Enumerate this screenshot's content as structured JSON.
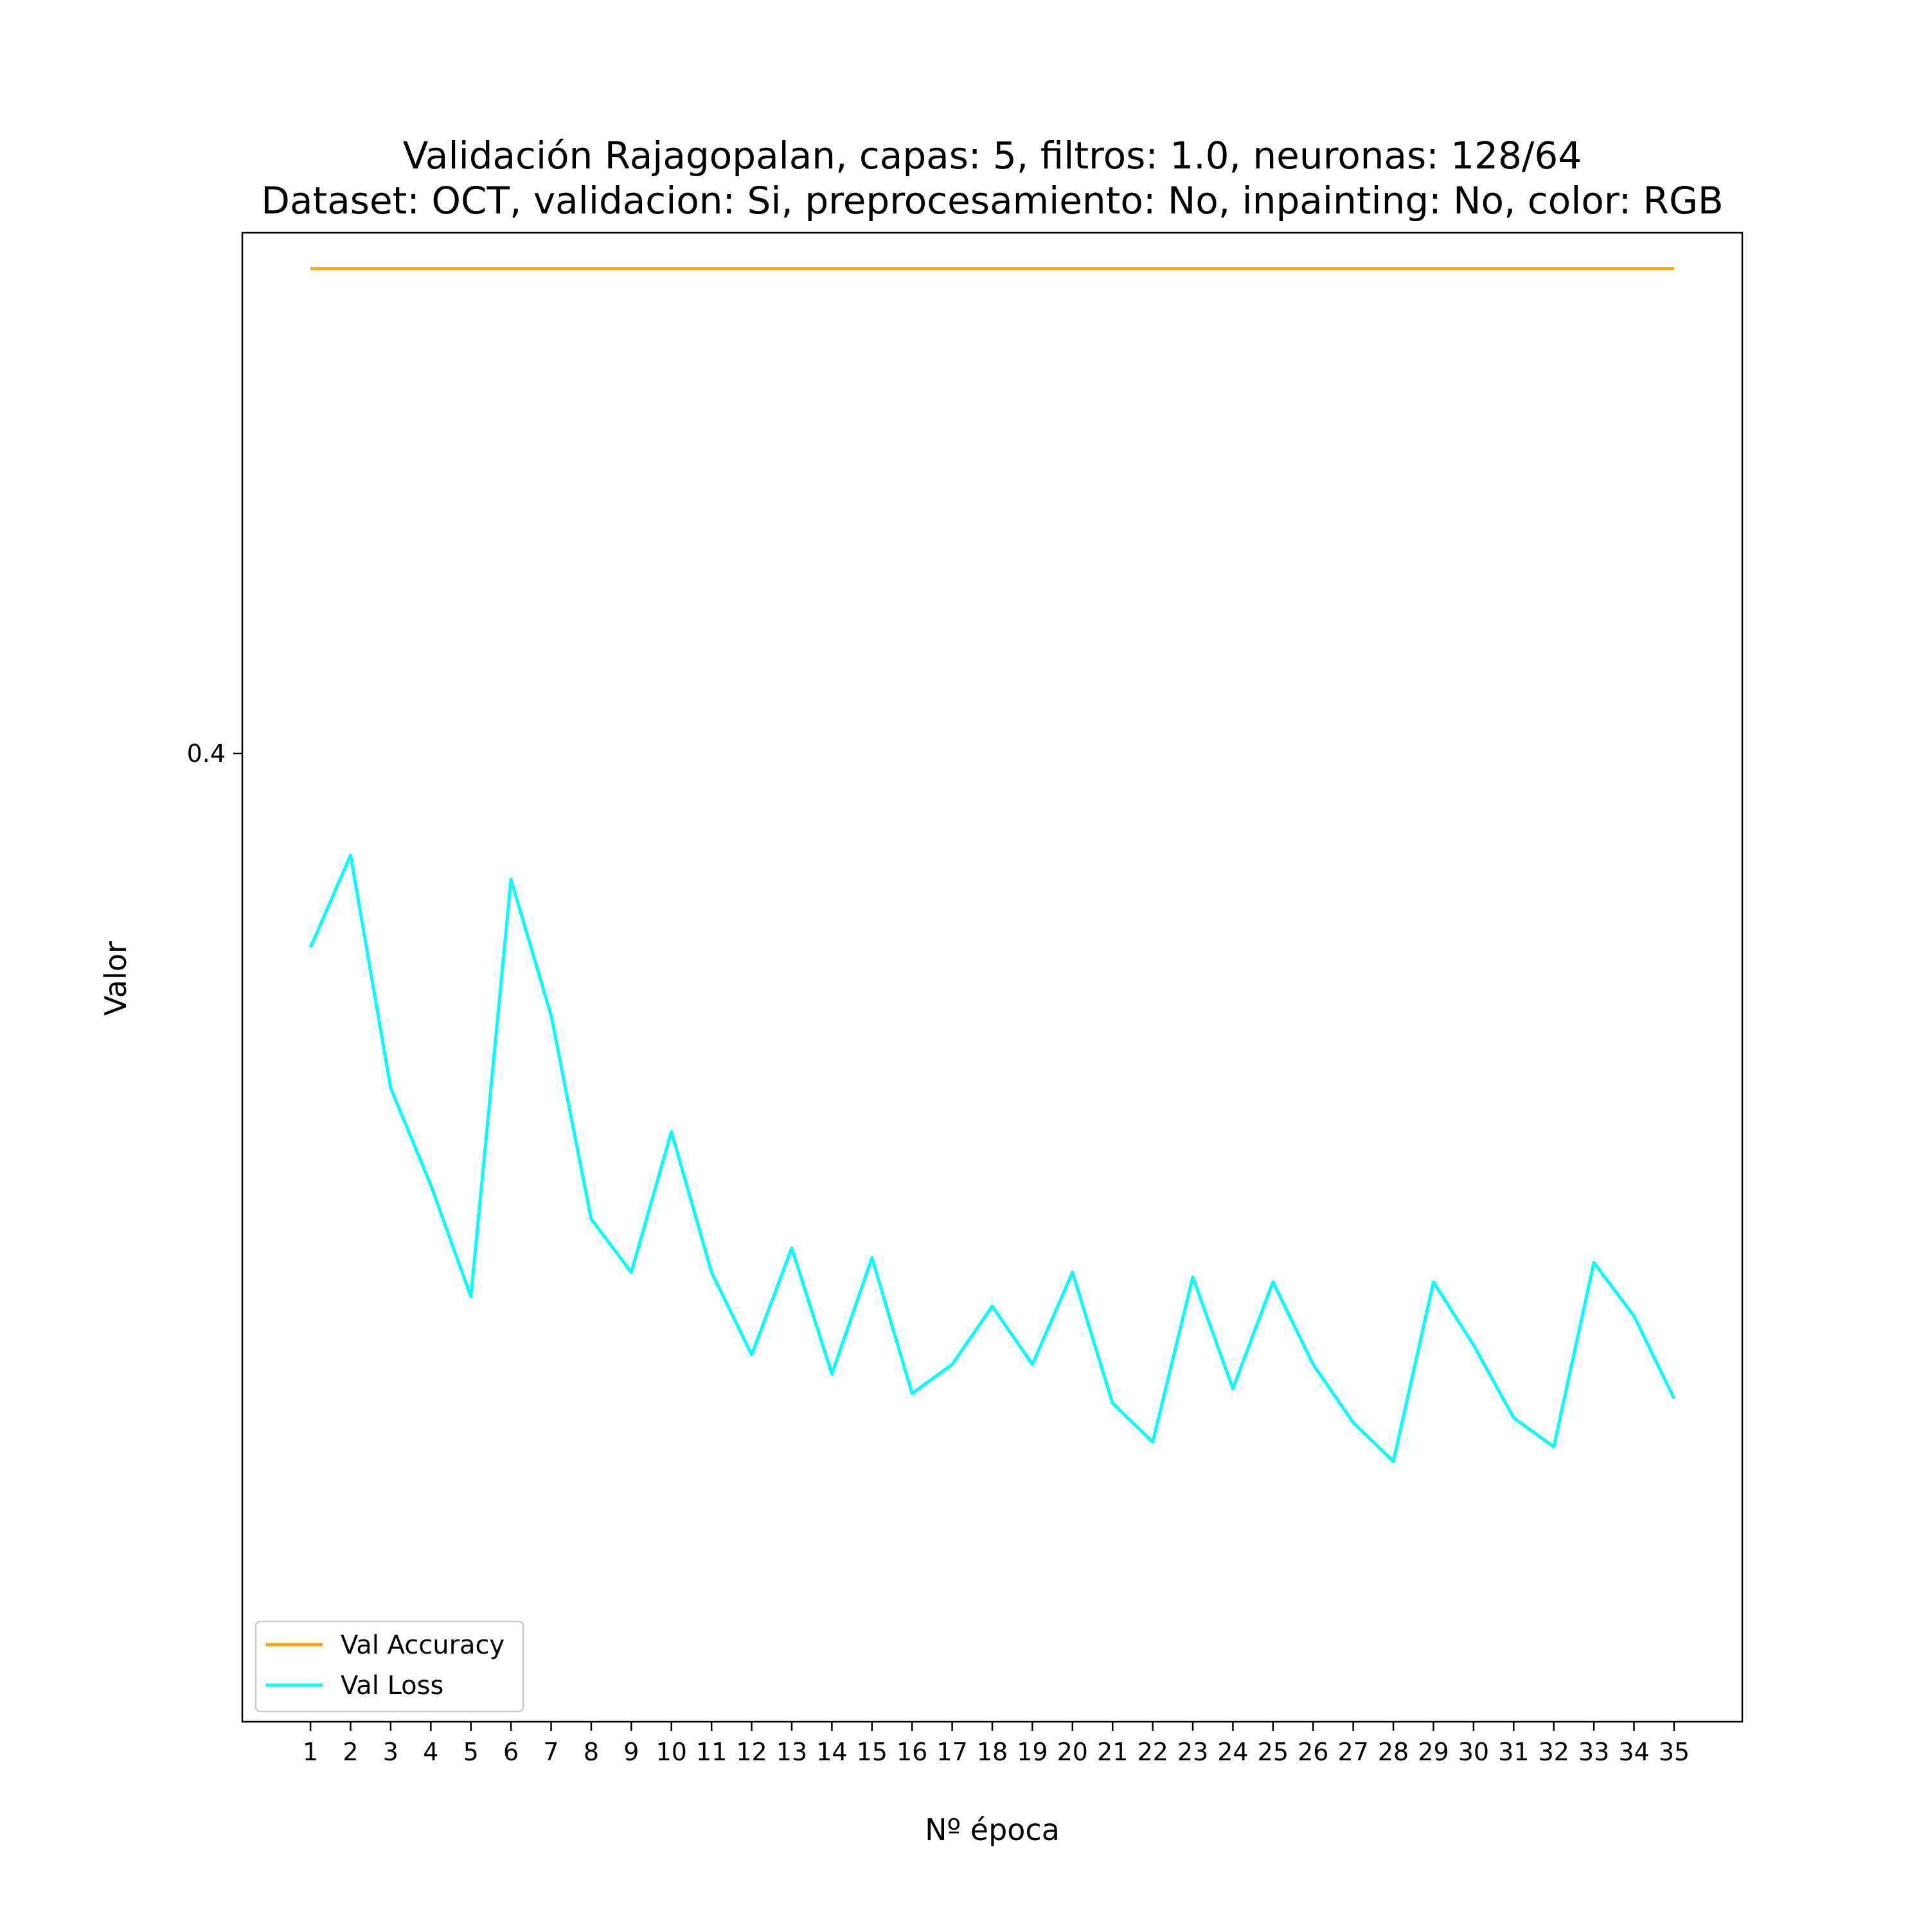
{
  "chart_data": {
    "type": "line",
    "title": "Validación Rajagopalan, capas: 5, filtros: 1.0, neuronas: 128/64",
    "subtitle": "Dataset: OCT, validacion: Si, preprocesamiento: No, inpainting: No, color: RGB",
    "xlabel": "Nº época",
    "ylabel": "Valor",
    "x": [
      1,
      2,
      3,
      4,
      5,
      6,
      7,
      8,
      9,
      10,
      11,
      12,
      13,
      14,
      15,
      16,
      17,
      18,
      19,
      20,
      21,
      22,
      23,
      24,
      25,
      26,
      27,
      28,
      29,
      30,
      31,
      32,
      33,
      34,
      35
    ],
    "x_tick_labels": [
      "1",
      "2",
      "3",
      "4",
      "5",
      "6",
      "7",
      "8",
      "9",
      "10",
      "11",
      "12",
      "13",
      "14",
      "15",
      "16",
      "17",
      "18",
      "19",
      "20",
      "21",
      "22",
      "23",
      "24",
      "25",
      "26",
      "27",
      "28",
      "29",
      "30",
      "31",
      "32",
      "33",
      "34",
      "35"
    ],
    "y_ticks": [
      0.4
    ],
    "y_tick_labels": [
      "0.4"
    ],
    "xlim": [
      -0.7,
      36.7
    ],
    "ylim": [
      0.2003,
      0.5074
    ],
    "grid": false,
    "legend_position": "lower-left",
    "series": [
      {
        "name": "Val Accuracy",
        "color": "#ffa500",
        "values": [
          0.5,
          0.5,
          0.5,
          0.5,
          0.5,
          0.5,
          0.5,
          0.5,
          0.5,
          0.5,
          0.5,
          0.5,
          0.5,
          0.5,
          0.5,
          0.5,
          0.5,
          0.5,
          0.5,
          0.5,
          0.5,
          0.5,
          0.5,
          0.5,
          0.5,
          0.5,
          0.5,
          0.5,
          0.5,
          0.5,
          0.5,
          0.5,
          0.5,
          0.5,
          0.5
        ]
      },
      {
        "name": "Val Loss",
        "color": "#00ffff",
        "values": [
          0.36,
          0.379,
          0.331,
          0.311,
          0.288,
          0.374,
          0.346,
          0.304,
          0.293,
          0.322,
          0.293,
          0.276,
          0.298,
          0.272,
          0.296,
          0.268,
          0.274,
          0.286,
          0.274,
          0.293,
          0.266,
          0.258,
          0.292,
          0.269,
          0.291,
          0.274,
          0.262,
          0.254,
          0.291,
          0.278,
          0.263,
          0.257,
          0.295,
          0.284,
          0.267
        ]
      }
    ]
  }
}
